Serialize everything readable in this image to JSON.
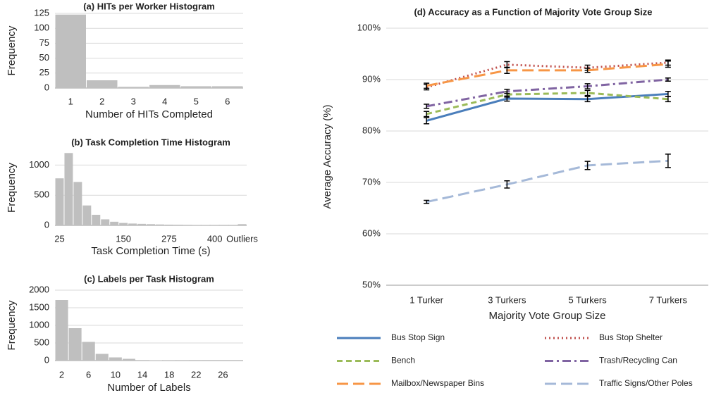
{
  "chart_data": [
    {
      "type": "bar",
      "title": "(a) HITs per Worker Histogram",
      "x_label": "Number of HITs Completed",
      "y_label": "Frequency",
      "categories": [
        "1",
        "2",
        "3",
        "4",
        "5",
        "6"
      ],
      "values": [
        123,
        13,
        2,
        5,
        3,
        3
      ],
      "color": "#bfbfbf",
      "ylim": [
        0,
        125
      ],
      "yticks": [
        0,
        25,
        50,
        75,
        100,
        125
      ],
      "grid": true
    },
    {
      "type": "bar",
      "title": "(b) Task Completion Time Histogram",
      "x_label": "Task Completion Time (s)",
      "y_label": "Frequency",
      "categories": [
        "25",
        null,
        null,
        null,
        null,
        null,
        null,
        "150",
        null,
        null,
        null,
        null,
        "275",
        null,
        null,
        null,
        null,
        "400",
        null,
        null,
        "Outliers"
      ],
      "values": [
        780,
        1200,
        720,
        330,
        175,
        100,
        60,
        40,
        30,
        25,
        20,
        15,
        12,
        10,
        8,
        6,
        5,
        4,
        3,
        3,
        20
      ],
      "color": "#bfbfbf",
      "ylim": [
        0,
        1250
      ],
      "yticks": [
        0,
        500,
        1000
      ],
      "grid": true
    },
    {
      "type": "bar",
      "title": "(c) Labels per Task Histogram",
      "x_label": "Number of Labels",
      "y_label": "Frequency",
      "categories": [
        "2",
        null,
        "6",
        null,
        "10",
        null,
        "14",
        null,
        "18",
        null,
        "22",
        null,
        "26",
        null
      ],
      "values": [
        1720,
        920,
        530,
        190,
        90,
        50,
        15,
        10,
        5,
        3,
        2,
        1,
        1,
        1
      ],
      "color": "#bfbfbf",
      "ylim": [
        0,
        2000
      ],
      "yticks": [
        0,
        500,
        1000,
        1500,
        2000
      ],
      "grid": true
    },
    {
      "type": "line",
      "title": "(d) Accuracy as a Function of Majority Vote Group Size",
      "x_label": "Majority Vote Group Size",
      "y_label": "Average Accuracy (%)",
      "categories": [
        "1 Turker",
        "3 Turkers",
        "5 Turkers",
        "7 Turkers"
      ],
      "ylim": [
        50,
        100
      ],
      "yticks": [
        {
          "value": 50,
          "label": "50%"
        },
        {
          "value": 60,
          "label": "60%"
        },
        {
          "value": 70,
          "label": "70%"
        },
        {
          "value": 80,
          "label": "80%"
        },
        {
          "value": 90,
          "label": "90%"
        },
        {
          "value": 100,
          "label": "100%"
        }
      ],
      "grid": true,
      "legend": "bottom",
      "series": [
        {
          "name": "Bus Stop Sign",
          "color": "#4a7ebb",
          "dash": "solid",
          "values": [
            82.0,
            86.3,
            86.2,
            87.2
          ],
          "errors": [
            0.6,
            0.5,
            0.5,
            0.5
          ]
        },
        {
          "name": "Bus Stop Shelter",
          "color": "#c0504d",
          "dash": "dot",
          "values": [
            88.5,
            92.9,
            92.3,
            93.3
          ],
          "errors": [
            0.5,
            0.6,
            0.5,
            0.5
          ]
        },
        {
          "name": "Bench",
          "color": "#9bbb59",
          "dash": "dash",
          "values": [
            83.3,
            87.1,
            87.4,
            86.2
          ],
          "errors": [
            0.5,
            0.5,
            0.5,
            0.5
          ]
        },
        {
          "name": "Trash/Recycling Can",
          "color": "#8064a2",
          "dash": "dashdot",
          "values": [
            84.8,
            87.7,
            88.7,
            90.0
          ],
          "errors": [
            0.4,
            0.4,
            0.5,
            0.3
          ]
        },
        {
          "name": "Mailbox/Newspaper Bins",
          "color": "#f79646",
          "dash": "longdash",
          "values": [
            88.8,
            91.8,
            91.8,
            93.0
          ],
          "errors": [
            0.5,
            0.6,
            0.4,
            0.6
          ]
        },
        {
          "name": "Traffic Signs/Other Poles",
          "color": "#a5b9d8",
          "dash": "longdash",
          "values": [
            66.2,
            69.6,
            73.3,
            74.2
          ],
          "errors": [
            0.3,
            0.7,
            0.8,
            1.3
          ]
        }
      ]
    }
  ]
}
